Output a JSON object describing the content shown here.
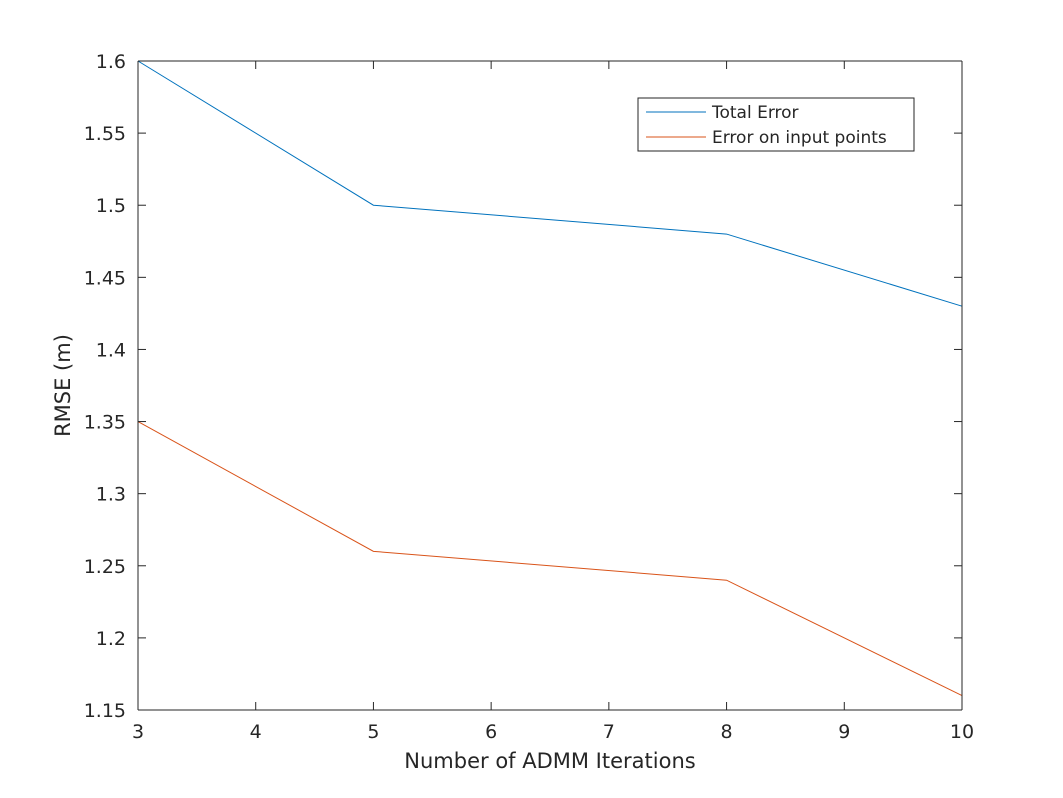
{
  "chart_data": {
    "type": "line",
    "title": "",
    "xlabel": "Number of ADMM Iterations",
    "ylabel": "RMSE (m)",
    "xlim": [
      3,
      10
    ],
    "ylim": [
      1.15,
      1.6
    ],
    "xticks": [
      3,
      4,
      5,
      6,
      7,
      8,
      9,
      10
    ],
    "xtick_labels": [
      "3",
      "4",
      "5",
      "6",
      "7",
      "8",
      "9",
      "10"
    ],
    "yticks": [
      1.15,
      1.2,
      1.25,
      1.3,
      1.35,
      1.4,
      1.45,
      1.5,
      1.55,
      1.6
    ],
    "ytick_labels": [
      "1.15",
      "1.2",
      "1.25",
      "1.3",
      "1.35",
      "1.4",
      "1.45",
      "1.5",
      "1.55",
      "1.6"
    ],
    "grid": false,
    "legend_position": "top-right",
    "series": [
      {
        "name": "Total Error",
        "color": "#0072BD",
        "x": [
          3,
          5,
          8,
          10
        ],
        "values": [
          1.6,
          1.5,
          1.48,
          1.43
        ]
      },
      {
        "name": "Error on input points",
        "color": "#D95319",
        "x": [
          3,
          5,
          8,
          10
        ],
        "values": [
          1.35,
          1.26,
          1.24,
          1.16
        ]
      }
    ]
  }
}
